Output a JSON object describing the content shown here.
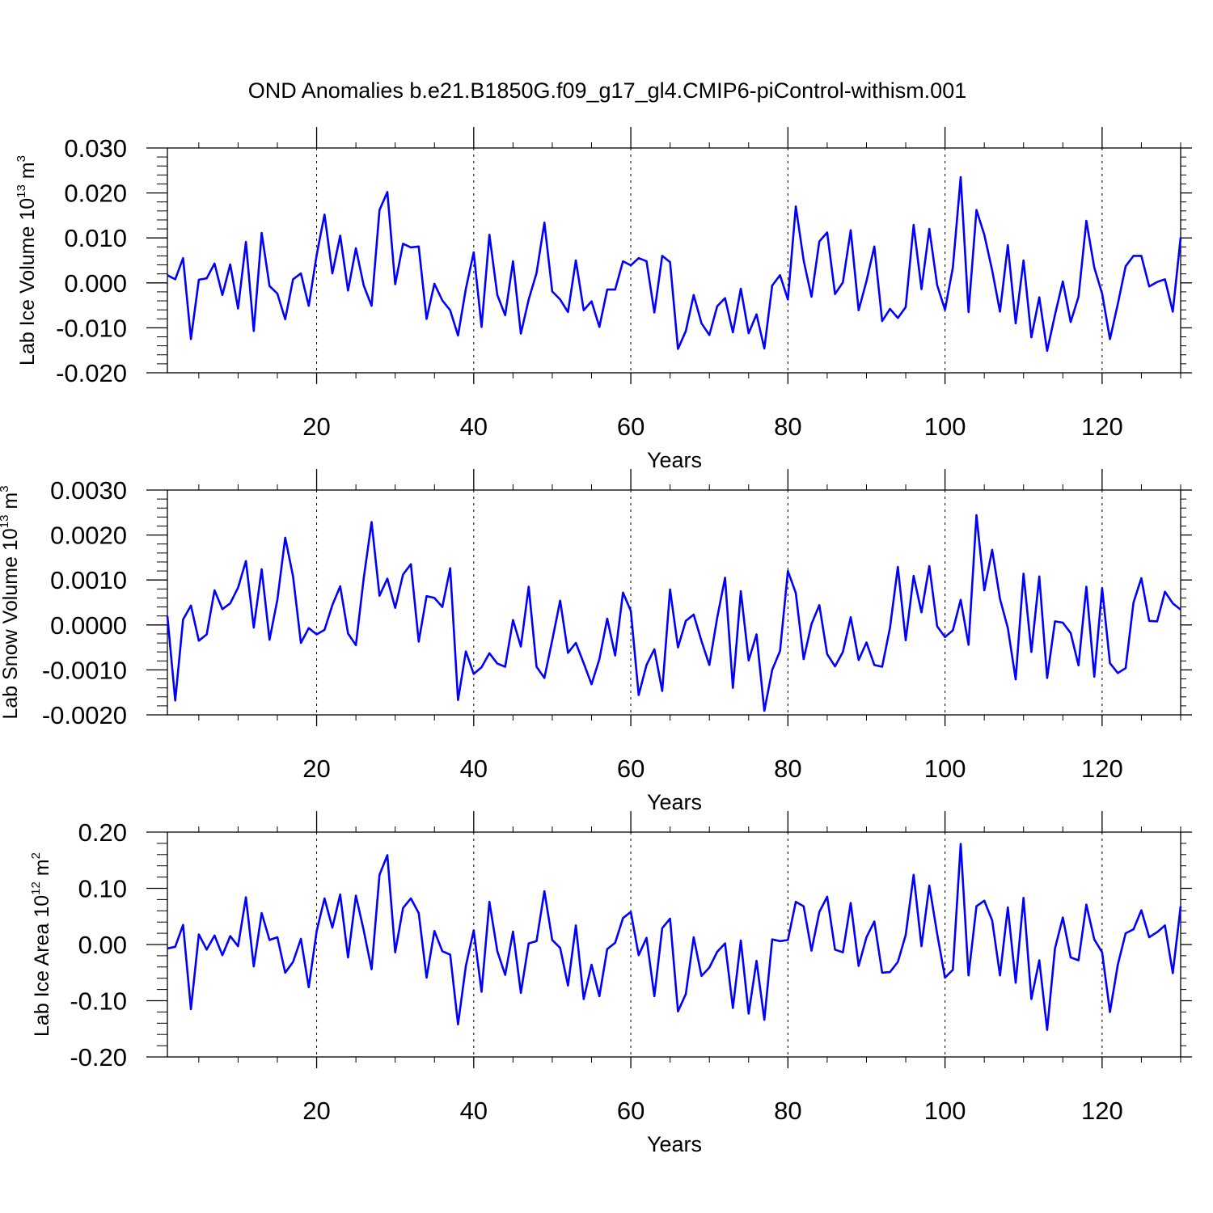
{
  "chart_data": [
    {
      "type": "line",
      "title": "OND Anomalies b.e21.B1850G.f09_g17_gl4.CMIP6-piControl-withism.001",
      "xlabel": "Years",
      "ylabel_text": "Lab Ice Volume 10",
      "ylabel_exp": "13",
      "ylabel_unit": " m",
      "ylabel_unit_exp": "3",
      "xlim": [
        1,
        130
      ],
      "ylim": [
        -0.02,
        0.03
      ],
      "yticks": [
        -0.02,
        -0.01,
        0.0,
        0.01,
        0.02,
        0.03
      ],
      "ytick_labels": [
        "-0.020",
        "-0.010",
        "0.000",
        "0.010",
        "0.020",
        "0.030"
      ],
      "xticks": [
        20,
        40,
        60,
        80,
        100,
        120
      ],
      "xtick_labels": [
        "20",
        "40",
        "60",
        "80",
        "100",
        "120"
      ],
      "line_color": "#0000ff",
      "grid": "dashed vertical at major x ticks",
      "series": [
        {
          "name": "Lab Ice Volume",
          "x_start": 1,
          "values": [
            0.0017,
            0.0008,
            0.0055,
            -0.0125,
            0.0007,
            0.001,
            0.0043,
            -0.0027,
            0.0041,
            -0.0057,
            0.0091,
            -0.0107,
            0.0111,
            -0.0007,
            -0.0024,
            -0.0081,
            0.0008,
            0.0021,
            -0.0051,
            0.0062,
            0.0152,
            0.0021,
            0.0105,
            -0.0017,
            0.0077,
            -0.0006,
            -0.0051,
            0.0162,
            0.0202,
            -0.0003,
            0.0087,
            0.0079,
            0.0081,
            -0.008,
            -0.0002,
            -0.0039,
            -0.0061,
            -0.0117,
            -0.0013,
            0.0068,
            -0.0098,
            0.0107,
            -0.0027,
            -0.0072,
            0.0048,
            -0.0113,
            -0.0037,
            0.0022,
            0.0134,
            -0.0019,
            -0.0037,
            -0.0065,
            0.005,
            -0.0061,
            -0.0041,
            -0.0098,
            -0.0015,
            -0.0015,
            0.0048,
            0.0039,
            0.0055,
            0.0048,
            -0.0066,
            0.006,
            0.0046,
            -0.0147,
            -0.0107,
            -0.0027,
            -0.009,
            -0.0116,
            -0.0052,
            -0.0034,
            -0.011,
            -0.0013,
            -0.0112,
            -0.007,
            -0.0146,
            -0.0006,
            0.0017,
            -0.0037,
            0.017,
            0.005,
            -0.0031,
            0.0092,
            0.0112,
            -0.0025,
            0.0001,
            0.0117,
            -0.0061,
            0.0004,
            0.0081,
            -0.0085,
            -0.0058,
            -0.0078,
            -0.0054,
            0.0129,
            -0.0014,
            0.012,
            -0.0005,
            -0.006,
            0.0034,
            0.0235,
            -0.0065,
            0.0162,
            0.0107,
            0.0028,
            -0.0064,
            0.0084,
            -0.009,
            0.005,
            -0.0121,
            -0.0032,
            -0.0151,
            -0.0071,
            0.0003,
            -0.0087,
            -0.0031,
            0.0138,
            0.0034,
            -0.0024,
            -0.0125,
            -0.0047,
            0.0037,
            0.006,
            0.006,
            -0.0008,
            0.0002,
            0.0008,
            -0.0064,
            0.0101
          ]
        }
      ]
    },
    {
      "type": "line",
      "xlabel": "Years",
      "ylabel_text": "Lab Snow Volume 10",
      "ylabel_exp": "13",
      "ylabel_unit": " m",
      "ylabel_unit_exp": "3",
      "xlim": [
        1,
        130
      ],
      "ylim": [
        -0.002,
        0.003
      ],
      "yticks": [
        -0.002,
        -0.001,
        0.0,
        0.001,
        0.002,
        0.003
      ],
      "ytick_labels": [
        "-0.0020",
        "-0.0010",
        "0.0000",
        "0.0010",
        "0.0020",
        "0.0030"
      ],
      "xticks": [
        20,
        40,
        60,
        80,
        100,
        120
      ],
      "xtick_labels": [
        "20",
        "40",
        "60",
        "80",
        "100",
        "120"
      ],
      "line_color": "#0000ff",
      "grid": "dashed vertical at major x ticks",
      "series": [
        {
          "name": "Lab Snow Volume",
          "x_start": 1,
          "values": [
            0.0002,
            -0.00168,
            0.00012,
            0.00043,
            -0.00035,
            -0.00021,
            0.00077,
            0.00035,
            0.00048,
            0.00083,
            0.00142,
            -6e-05,
            0.00124,
            -0.00033,
            0.00056,
            0.00194,
            0.00108,
            -0.0004,
            -7e-05,
            -0.00021,
            -0.00011,
            0.00044,
            0.00086,
            -0.00019,
            -0.00045,
            0.00104,
            0.00229,
            0.00065,
            0.00103,
            0.00038,
            0.00112,
            0.00135,
            -0.00037,
            0.00064,
            0.0006,
            0.0004,
            0.00126,
            -0.00167,
            -0.00059,
            -0.00109,
            -0.00094,
            -0.00063,
            -0.00086,
            -0.00093,
            0.00011,
            -0.00048,
            0.00085,
            -0.00093,
            -0.00118,
            -0.00034,
            0.00054,
            -0.00062,
            -0.0004,
            -0.00085,
            -0.00132,
            -0.00076,
            0.00014,
            -0.00068,
            0.00072,
            0.00031,
            -0.00156,
            -0.00089,
            -0.00054,
            -0.00147,
            0.00079,
            -0.0005,
            9e-05,
            0.00023,
            -0.00036,
            -0.00089,
            0.00016,
            0.00105,
            -0.0014,
            0.00075,
            -0.00079,
            -0.00021,
            -0.00191,
            -0.001,
            -0.00058,
            0.0012,
            0.00071,
            -0.00076,
            2e-05,
            0.00044,
            -0.00065,
            -0.00092,
            -0.0006,
            0.00017,
            -0.00078,
            -0.00039,
            -0.00089,
            -0.00093,
            -6e-05,
            0.00129,
            -0.00034,
            0.00109,
            0.00028,
            0.00131,
            -3e-05,
            -0.00027,
            -0.00012,
            0.00056,
            -0.00044,
            0.00244,
            0.00077,
            0.00167,
            0.00058,
            -7e-05,
            -0.00121,
            0.00114,
            -0.0006,
            0.00108,
            -0.00118,
            8e-05,
            5e-05,
            -0.00018,
            -0.0009,
            0.00085,
            -0.00115,
            0.00082,
            -0.00085,
            -0.00107,
            -0.00096,
            0.0005,
            0.00104,
            9e-05,
            8e-05,
            0.00074,
            0.00048,
            0.00034
          ]
        }
      ]
    },
    {
      "type": "line",
      "xlabel": "Years",
      "ylabel_text": "Lab Ice Area 10",
      "ylabel_exp": "12",
      "ylabel_unit": " m",
      "ylabel_unit_exp": "2",
      "xlim": [
        1,
        130
      ],
      "ylim": [
        -0.2,
        0.2
      ],
      "yticks": [
        -0.2,
        -0.1,
        0.0,
        0.1,
        0.2
      ],
      "ytick_labels": [
        "-0.20",
        "-0.10",
        "0.00",
        "0.10",
        "0.20"
      ],
      "xticks": [
        20,
        40,
        60,
        80,
        100,
        120
      ],
      "xtick_labels": [
        "20",
        "40",
        "60",
        "80",
        "100",
        "120"
      ],
      "line_color": "#0000ff",
      "grid": "dashed vertical at major x ticks",
      "series": [
        {
          "name": "Lab Ice Area",
          "x_start": 1,
          "values": [
            -0.007,
            -0.004,
            0.035,
            -0.115,
            0.018,
            -0.009,
            0.016,
            -0.019,
            0.015,
            -0.003,
            0.084,
            -0.039,
            0.056,
            0.008,
            0.013,
            -0.05,
            -0.031,
            0.01,
            -0.076,
            0.024,
            0.082,
            0.03,
            0.089,
            -0.023,
            0.087,
            0.025,
            -0.044,
            0.124,
            0.159,
            -0.014,
            0.065,
            0.082,
            0.056,
            -0.059,
            0.024,
            -0.012,
            -0.018,
            -0.142,
            -0.038,
            0.025,
            -0.084,
            0.076,
            -0.012,
            -0.054,
            0.023,
            -0.086,
            0.002,
            0.006,
            0.095,
            0.008,
            -0.006,
            -0.073,
            0.034,
            -0.097,
            -0.036,
            -0.092,
            -0.008,
            0.003,
            0.047,
            0.058,
            -0.019,
            0.012,
            -0.092,
            0.029,
            0.046,
            -0.119,
            -0.088,
            0.013,
            -0.056,
            -0.041,
            -0.013,
            0.002,
            -0.113,
            0.007,
            -0.123,
            -0.029,
            -0.134,
            0.009,
            0.006,
            0.008,
            0.076,
            0.068,
            -0.011,
            0.058,
            0.085,
            -0.009,
            -0.014,
            0.074,
            -0.038,
            0.013,
            0.041,
            -0.05,
            -0.049,
            -0.031,
            0.017,
            0.124,
            -0.003,
            0.105,
            0.019,
            -0.059,
            -0.045,
            0.179,
            -0.055,
            0.068,
            0.078,
            0.043,
            -0.055,
            0.066,
            -0.068,
            0.083,
            -0.097,
            -0.028,
            -0.152,
            -0.007,
            0.048,
            -0.023,
            -0.028,
            0.071,
            0.009,
            -0.014,
            -0.12,
            -0.036,
            0.02,
            0.027,
            0.061,
            0.013,
            0.022,
            0.034,
            -0.051,
            0.068
          ]
        }
      ]
    }
  ]
}
